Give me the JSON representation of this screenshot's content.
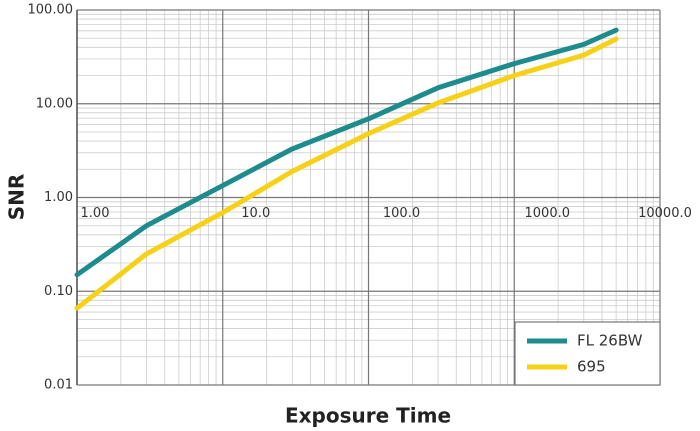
{
  "chart_data": {
    "type": "line",
    "x_label": "Exposure Time",
    "y_label": "SNR",
    "log_x": true,
    "log_y": true,
    "grid": true,
    "minor_grid": true,
    "legend": "lower right",
    "xlim": [
      1,
      10000
    ],
    "ylim": [
      0.01,
      100
    ],
    "xticks": [
      {
        "value": 1,
        "label": "1.00"
      },
      {
        "value": 10,
        "label": "10.0"
      },
      {
        "value": 100,
        "label": "100.0"
      },
      {
        "value": 1000,
        "label": "1000.0"
      },
      {
        "value": 10000,
        "label": "10000.0"
      }
    ],
    "yticks": [
      {
        "value": 0.01,
        "label": "0.01"
      },
      {
        "value": 0.1,
        "label": "0.10"
      },
      {
        "value": 1,
        "label": "1.00"
      },
      {
        "value": 10,
        "label": "10.00"
      },
      {
        "value": 100,
        "label": "100.00"
      }
    ],
    "x": [
      1,
      3,
      10,
      30,
      100,
      300,
      1000,
      3000,
      5000
    ],
    "series": [
      {
        "name": "FL 26BW",
        "color": "#1e8c8c",
        "values": [
          0.15,
          0.5,
          1.34,
          3.3,
          6.9,
          14.8,
          26.8,
          43,
          61
        ]
      },
      {
        "name": "695",
        "color": "#f7d117",
        "values": [
          0.066,
          0.25,
          0.69,
          1.9,
          4.8,
          10.2,
          20,
          33,
          49
        ]
      }
    ]
  }
}
